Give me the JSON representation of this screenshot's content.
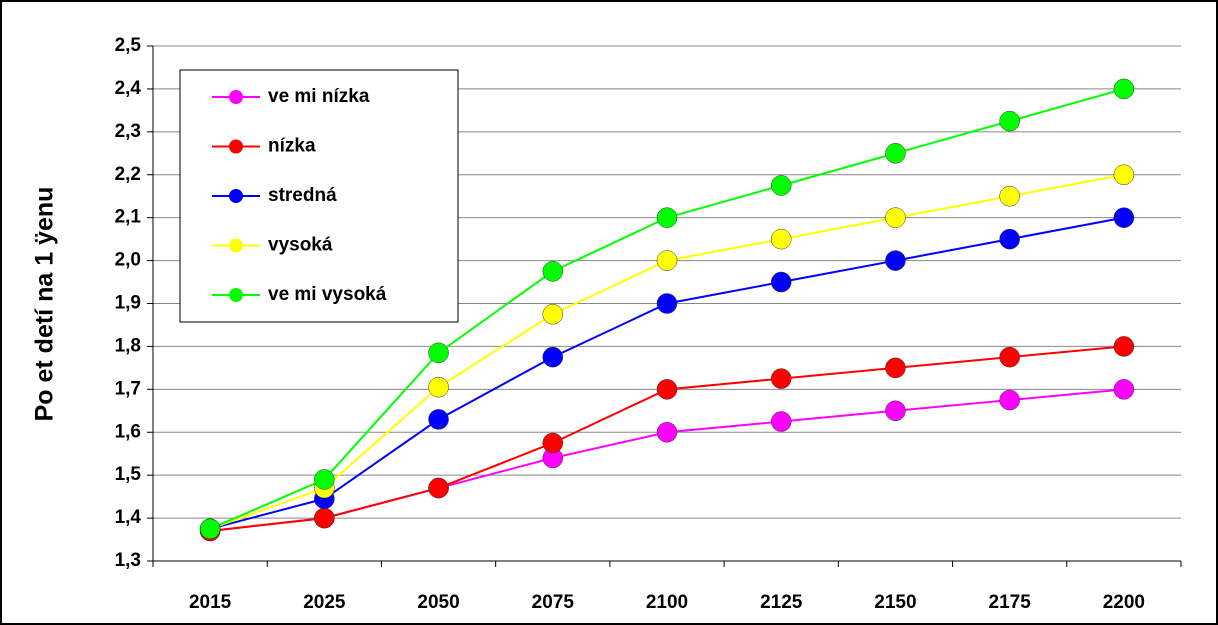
{
  "chart_data": {
    "type": "line",
    "y_label": "Po et detí na 1 ÿenu",
    "categories": [
      "2015",
      "2025",
      "2050",
      "2075",
      "2100",
      "2125",
      "2150",
      "2175",
      "2200"
    ],
    "series": [
      {
        "name": "ve mi nízka",
        "color": "#ff00ff",
        "values": [
          1.37,
          1.4,
          1.47,
          1.54,
          1.6,
          1.625,
          1.65,
          1.675,
          1.7
        ]
      },
      {
        "name": "nízka",
        "color": "#ff0000",
        "values": [
          1.37,
          1.4,
          1.47,
          1.575,
          1.7,
          1.725,
          1.75,
          1.775,
          1.8
        ]
      },
      {
        "name": "stredná",
        "color": "#0000ff",
        "values": [
          1.375,
          1.445,
          1.63,
          1.775,
          1.9,
          1.95,
          2.0,
          2.05,
          2.1
        ]
      },
      {
        "name": "vysoká",
        "color": "#ffff00",
        "values": [
          1.375,
          1.47,
          1.705,
          1.875,
          2.0,
          2.05,
          2.1,
          2.15,
          2.2
        ]
      },
      {
        "name": "ve mi vysoká",
        "color": "#00ff00",
        "values": [
          1.375,
          1.49,
          1.785,
          1.975,
          2.1,
          2.175,
          2.25,
          2.325,
          2.4
        ]
      }
    ],
    "ylim": [
      1.3,
      2.5
    ],
    "yticks": [
      {
        "value": 1.3,
        "label": "1,3"
      },
      {
        "value": 1.4,
        "label": "1,4"
      },
      {
        "value": 1.5,
        "label": "1,5"
      },
      {
        "value": 1.6,
        "label": "1,6"
      },
      {
        "value": 1.7,
        "label": "1,7"
      },
      {
        "value": 1.8,
        "label": "1,8"
      },
      {
        "value": 1.9,
        "label": "1,9"
      },
      {
        "value": 2.0,
        "label": "2,0"
      },
      {
        "value": 2.1,
        "label": "2,1"
      },
      {
        "value": 2.2,
        "label": "2,2"
      },
      {
        "value": 2.3,
        "label": "2,3"
      },
      {
        "value": 2.4,
        "label": "2,4"
      },
      {
        "value": 2.5,
        "label": "2,5"
      }
    ],
    "grid": true
  }
}
